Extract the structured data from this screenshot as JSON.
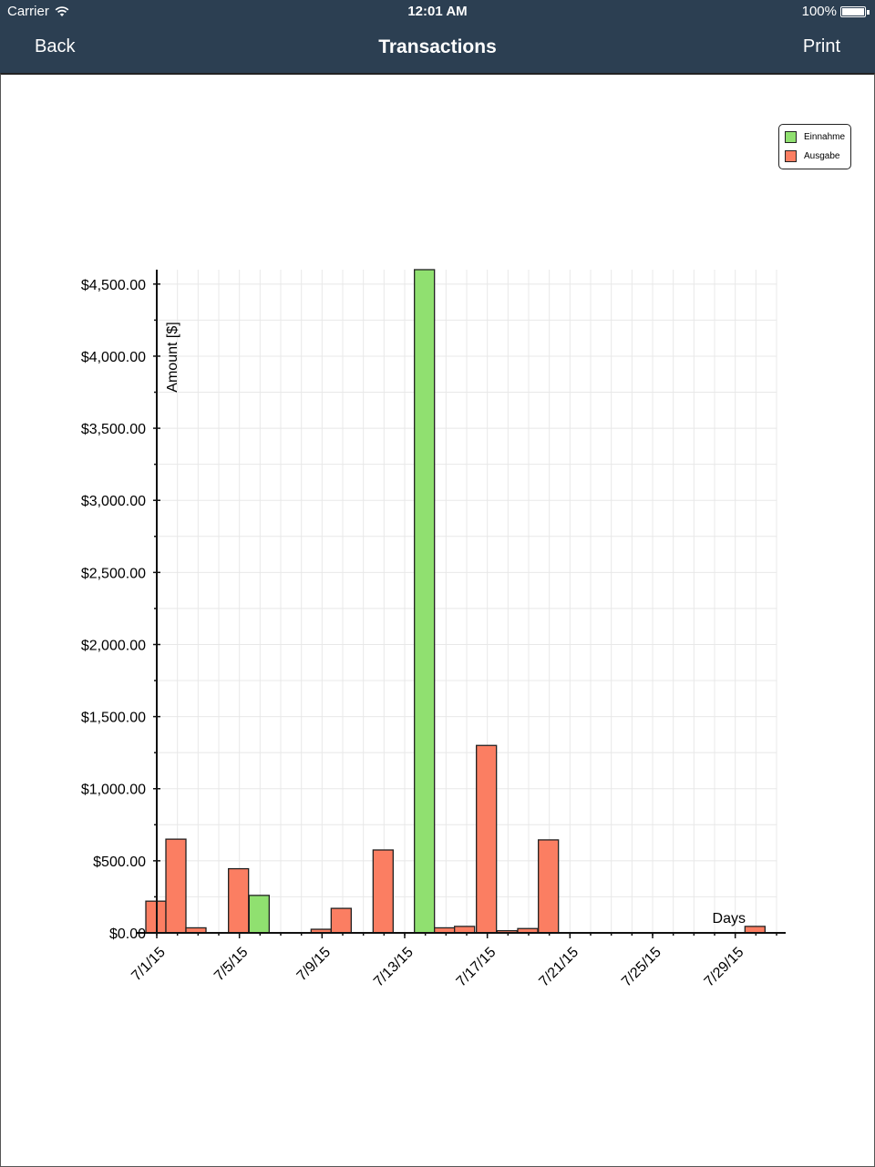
{
  "status_bar": {
    "carrier": "Carrier",
    "time": "12:01 AM",
    "battery": "100%"
  },
  "nav": {
    "back_label": "Back",
    "title": "Transactions",
    "print_label": "Print"
  },
  "colors": {
    "navbar": "#2c3f52",
    "income": "#90e070",
    "expense": "#fb7e62"
  },
  "legend": {
    "items": [
      {
        "label": "Einnahme",
        "color": "#90e070"
      },
      {
        "label": "Ausgabe",
        "color": "#fb7e62"
      }
    ]
  },
  "chart_data": {
    "type": "bar",
    "title": "",
    "xlabel": "Days",
    "ylabel": "Amount [$]",
    "ylim": [
      0,
      4600
    ],
    "xlim": [
      "7/1/15",
      "7/31/15"
    ],
    "y_ticks": [
      "$0.00",
      "$500.00",
      "$1,000.00",
      "$1,500.00",
      "$2,000.00",
      "$2,500.00",
      "$3,000.00",
      "$3,500.00",
      "$4,000.00",
      "$4,500.00"
    ],
    "x_ticks": [
      "7/1/15",
      "7/5/15",
      "7/9/15",
      "7/13/15",
      "7/17/15",
      "7/21/15",
      "7/25/15",
      "7/29/15"
    ],
    "grid": true,
    "legend_position": "top-right",
    "series": [
      {
        "name": "Einnahme",
        "color": "#90e070",
        "points": [
          {
            "x": "7/6/15",
            "y": 260
          },
          {
            "x": "7/14/15",
            "y": 4600
          }
        ]
      },
      {
        "name": "Ausgabe",
        "color": "#fb7e62",
        "points": [
          {
            "x": "7/1/15",
            "y": 220
          },
          {
            "x": "7/1/15",
            "y": 650
          },
          {
            "x": "7/2/15",
            "y": 35
          },
          {
            "x": "7/5/15",
            "y": 445
          },
          {
            "x": "7/9/15",
            "y": 25
          },
          {
            "x": "7/9/15",
            "y": 170
          },
          {
            "x": "7/12/15",
            "y": 575
          },
          {
            "x": "7/14/15",
            "y": 35
          },
          {
            "x": "7/15/15",
            "y": 45
          },
          {
            "x": "7/17/15",
            "y": 1300
          },
          {
            "x": "7/18/15",
            "y": 15
          },
          {
            "x": "7/19/15",
            "y": 30
          },
          {
            "x": "7/20/15",
            "y": 645
          },
          {
            "x": "7/30/15",
            "y": 45
          }
        ]
      }
    ]
  }
}
